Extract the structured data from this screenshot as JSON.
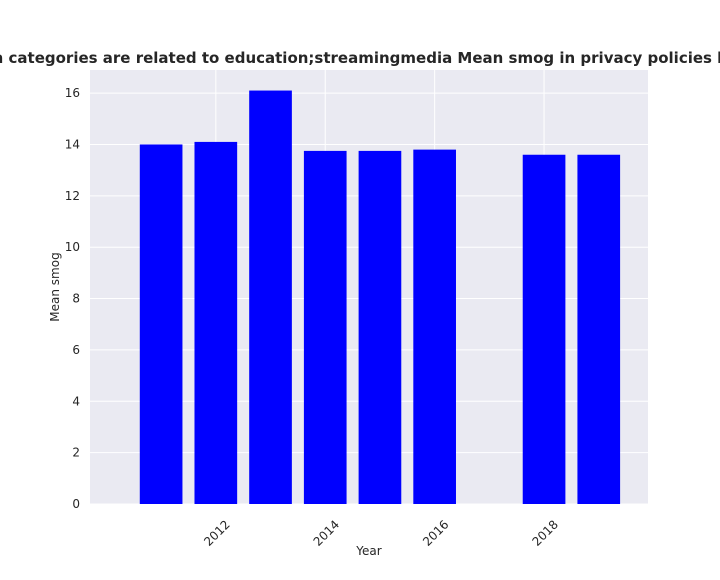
{
  "chart_data": {
    "type": "bar",
    "title": "when categories are related to education;streamingmedia Mean smog in privacy policies by Year",
    "xlabel": "Year",
    "ylabel": "Mean smog",
    "x": [
      2011,
      2012,
      2013,
      2014,
      2015,
      2016,
      2018,
      2019
    ],
    "values": [
      14.0,
      14.1,
      16.1,
      13.75,
      13.75,
      13.8,
      13.6,
      13.6
    ],
    "xlim": [
      2009.7,
      2019.9
    ],
    "ylim": [
      0,
      16.9
    ],
    "xticks": [
      2012,
      2014,
      2016,
      2018
    ],
    "yticks": [
      0,
      2,
      4,
      6,
      8,
      10,
      12,
      14,
      16
    ],
    "bar_color": "#0000ff",
    "background_color": "#eaeaf2",
    "grid": true
  }
}
